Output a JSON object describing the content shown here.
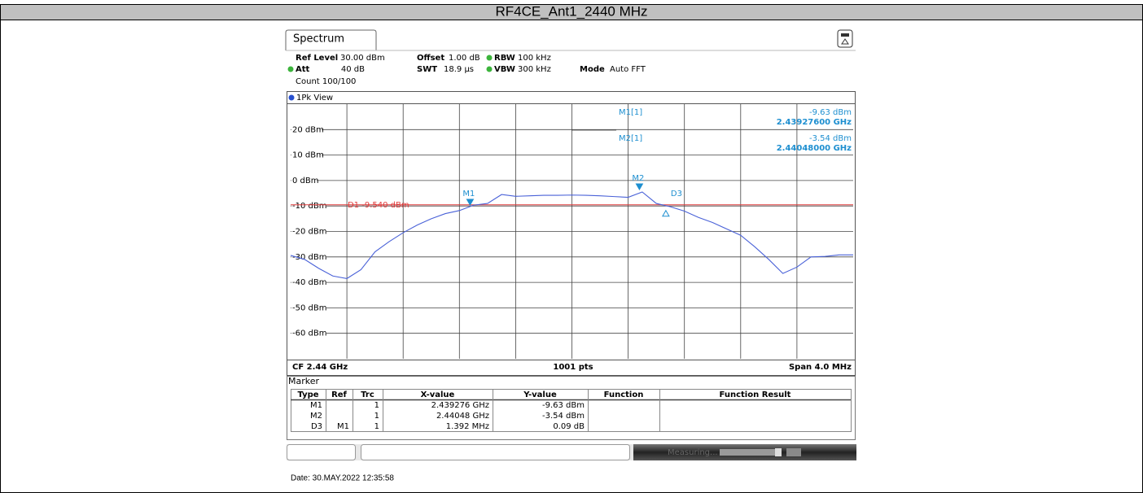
{
  "title": "RF4CE_Ant1_2440 MHz",
  "tab": "Spectrum",
  "settings": {
    "ref_level_label": "Ref Level",
    "ref_level": "30.00 dBm",
    "offset_label": "Offset",
    "offset": "1.00 dB",
    "rbw_label": "RBW",
    "rbw": "100 kHz",
    "att_label": "Att",
    "att": "40 dB",
    "swt_label": "SWT",
    "swt": "18.9 µs",
    "vbw_label": "VBW",
    "vbw": "300 kHz",
    "mode_label": "Mode",
    "mode": "Auto FFT",
    "count": "Count 100/100"
  },
  "view": "1Pk View",
  "chart_data": {
    "type": "line",
    "xlim": [
      2.438,
      2.442
    ],
    "xticks": [
      2.4384,
      2.4388,
      2.4392,
      2.4396,
      2.44,
      2.4404,
      2.4408,
      2.4412,
      2.4416
    ],
    "ylim": [
      -70,
      30
    ],
    "yticks": [
      {
        "value": 20,
        "label": "20 dBm"
      },
      {
        "value": 10,
        "label": "10 dBm"
      },
      {
        "value": 0,
        "label": "0 dBm"
      },
      {
        "value": -10,
        "label": "-10 dBm"
      },
      {
        "value": -20,
        "label": "-20 dBm"
      },
      {
        "value": -30,
        "label": "-30 dBm"
      },
      {
        "value": -40,
        "label": "-40 dBm"
      },
      {
        "value": -50,
        "label": "-50 dBm"
      },
      {
        "value": -60,
        "label": "-60 dBm"
      }
    ],
    "grid": true,
    "x": [
      2.438,
      2.4381,
      2.4382,
      2.4383,
      2.4384,
      2.4385,
      2.4386,
      2.4387,
      2.4388,
      2.4389,
      2.439,
      2.4391,
      2.4392,
      2.4393,
      2.4394,
      2.4395,
      2.4396,
      2.4397,
      2.4398,
      2.4399,
      2.44,
      2.4401,
      2.4402,
      2.4403,
      2.4404,
      2.4405,
      2.4406,
      2.4407,
      2.4408,
      2.4409,
      2.441,
      2.4411,
      2.4412,
      2.4413,
      2.4414,
      2.4415,
      2.4416,
      2.4417,
      2.4418,
      2.4419,
      2.442
    ],
    "series": [
      {
        "color": "#4a62d8",
        "values": [
          -29.4,
          -31,
          -34.5,
          -37.5,
          -38.5,
          -35,
          -28,
          -24,
          -20.5,
          -17.5,
          -15,
          -13,
          -11.8,
          -9.7,
          -9,
          -5.5,
          -6.2,
          -6,
          -5.8,
          -5.8,
          -5.7,
          -5.8,
          -6,
          -6.3,
          -6.6,
          -4.5,
          -9,
          -10.3,
          -12,
          -14.5,
          -16.5,
          -19,
          -21.5,
          -26,
          -31,
          -36.5,
          -34,
          -30,
          -29.8,
          -29.2,
          -29.2
        ]
      }
    ],
    "display_line": {
      "value": -9.54,
      "label": "D1 -9.540 dBm",
      "color": "#e03a3a"
    },
    "markers": [
      {
        "label": "M1",
        "x": 2.439276,
        "y": -9.63,
        "readout": "M1[1]",
        "y_label": "-9.63 dBm",
        "x_label": "2.43927600 GHz"
      },
      {
        "label": "M2",
        "x": 2.44048,
        "y": -3.54,
        "readout": "M2[1]",
        "y_label": "-3.54 dBm",
        "x_label": "2.44048000 GHz"
      },
      {
        "label": "D3",
        "x": 2.440668,
        "y": -9.54
      }
    ],
    "marker_color": "#1e8fd0",
    "footer_left": "CF 2.44 GHz",
    "footer_center": "1001 pts",
    "footer_right": "Span 4.0 MHz"
  },
  "table": {
    "title": "Marker",
    "columns": [
      "Type",
      "Ref",
      "Trc",
      "X-value",
      "Y-value",
      "Function",
      "Function Result"
    ],
    "rows": [
      [
        "M1",
        "",
        "1",
        "2.439276 GHz",
        "-9.63 dBm",
        "",
        ""
      ],
      [
        "M2",
        "",
        "1",
        "2.44048 GHz",
        "-3.54 dBm",
        "",
        ""
      ],
      [
        "D3",
        "M1",
        "1",
        "1.392 MHz",
        "0.09 dB",
        "",
        ""
      ]
    ]
  },
  "status": "Measuring...",
  "date": "Date: 30.MAY.2022  12:35:58"
}
